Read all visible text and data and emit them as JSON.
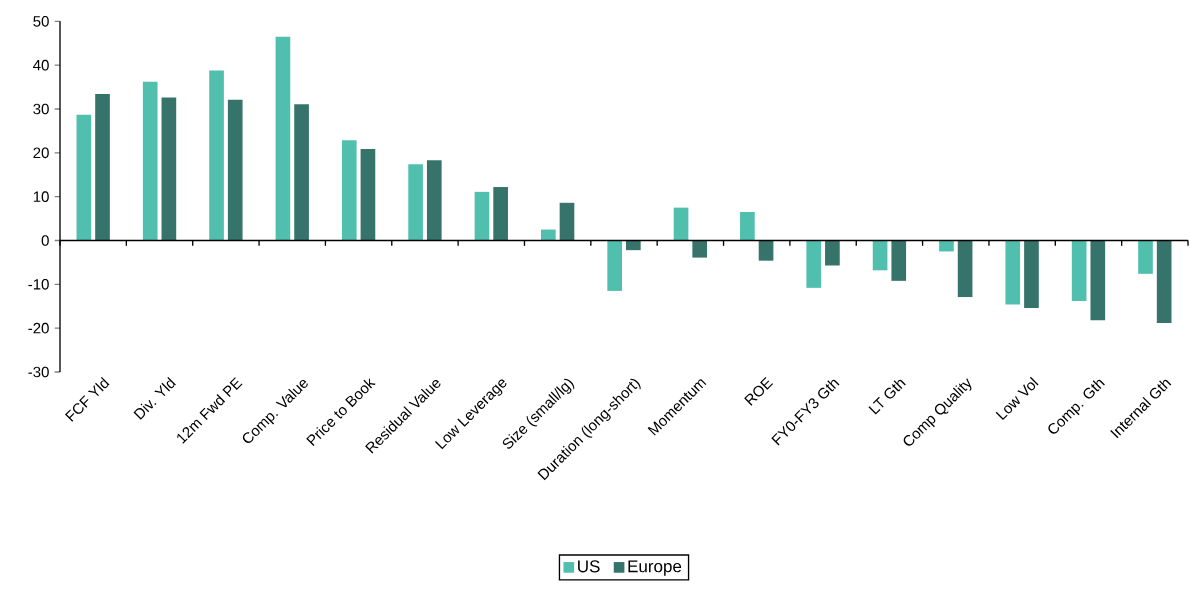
{
  "chart_data": {
    "type": "bar",
    "categories": [
      "FCF Yld",
      "Div. Yld",
      "12m Fwd PE",
      "Comp. Value",
      "Price to Book",
      "Residual Value",
      "Low Leverage",
      "Size (small/lg)",
      "Duration (long-short)",
      "Momentum",
      "ROE",
      "FY0-FY3 Gth",
      "LT Gth",
      "Comp Quality",
      "Low Vol",
      "Comp. Gth",
      "Internal Gth"
    ],
    "series": [
      {
        "name": "US",
        "color": "#50bfae",
        "values": [
          28.7,
          36.2,
          38.8,
          46.5,
          22.9,
          17.4,
          11.1,
          2.5,
          -11.5,
          7.5,
          6.5,
          -10.8,
          -6.8,
          -2.5,
          -14.6,
          -13.8,
          -7.6
        ]
      },
      {
        "name": "Europe",
        "color": "#36736a",
        "values": [
          33.4,
          32.6,
          32.1,
          31.1,
          20.9,
          18.3,
          12.2,
          8.6,
          -2.2,
          -3.9,
          -4.6,
          -5.7,
          -9.2,
          -12.9,
          -15.4,
          -18.2,
          -18.8
        ]
      }
    ],
    "ylim": [
      -30,
      50
    ],
    "yticks": [
      -30,
      -20,
      -10,
      0,
      10,
      20,
      30,
      40,
      50
    ],
    "legend": "bottom"
  }
}
